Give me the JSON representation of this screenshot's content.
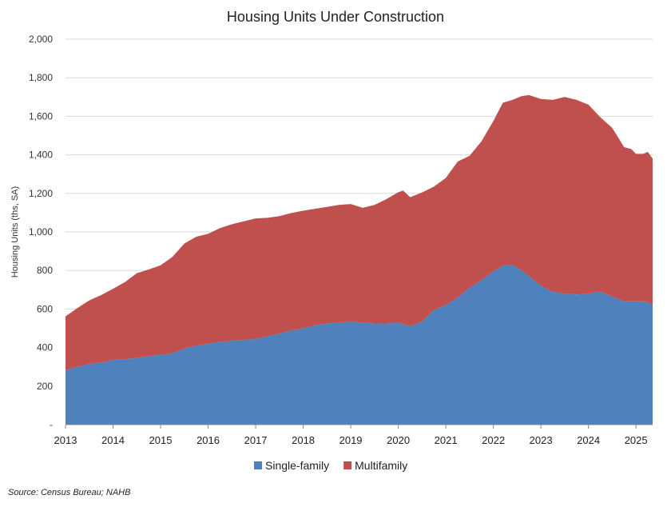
{
  "chart_data": {
    "type": "area",
    "stacked": true,
    "title": "Housing Units Under Construction",
    "ylabel": "Housing Units (ths, SA)",
    "xlabel": "",
    "xlim": [
      2013.0,
      2025.35
    ],
    "ylim": [
      0,
      2000
    ],
    "yticks": [
      0,
      200,
      400,
      600,
      800,
      1000,
      1200,
      1400,
      1600,
      1800,
      2000
    ],
    "ytick_labels": [
      "-",
      "200",
      "400",
      "600",
      "800",
      "1,000",
      "1,200",
      "1,400",
      "1,600",
      "1,800",
      "2,000"
    ],
    "xticks": [
      2013,
      2014,
      2015,
      2016,
      2017,
      2018,
      2019,
      2020,
      2021,
      2022,
      2023,
      2024,
      2025
    ],
    "xtick_labels": [
      "2013",
      "2014",
      "2015",
      "2016",
      "2017",
      "2018",
      "2019",
      "2020",
      "2021",
      "2022",
      "2023",
      "2024",
      "2025"
    ],
    "grid": "horizontal",
    "legend_position": "bottom",
    "x": [
      2013.0,
      2013.25,
      2013.5,
      2013.75,
      2014.0,
      2014.25,
      2014.5,
      2014.75,
      2015.0,
      2015.25,
      2015.5,
      2015.75,
      2016.0,
      2016.25,
      2016.5,
      2016.75,
      2017.0,
      2017.25,
      2017.5,
      2017.75,
      2018.0,
      2018.25,
      2018.5,
      2018.75,
      2019.0,
      2019.25,
      2019.5,
      2019.75,
      2020.0,
      2020.1,
      2020.25,
      2020.5,
      2020.75,
      2021.0,
      2021.25,
      2021.5,
      2021.75,
      2022.0,
      2022.2,
      2022.4,
      2022.6,
      2022.75,
      2023.0,
      2023.25,
      2023.5,
      2023.75,
      2024.0,
      2024.25,
      2024.5,
      2024.75,
      2024.9,
      2025.0,
      2025.15,
      2025.25,
      2025.35
    ],
    "series": [
      {
        "name": "Single-family",
        "color": "#4f81bd",
        "values": [
          282,
          300,
          315,
          322,
          335,
          340,
          346,
          355,
          362,
          370,
          395,
          410,
          420,
          430,
          435,
          440,
          445,
          458,
          472,
          488,
          500,
          515,
          525,
          530,
          535,
          530,
          525,
          525,
          528,
          522,
          510,
          535,
          595,
          620,
          660,
          710,
          750,
          795,
          825,
          830,
          800,
          770,
          720,
          690,
          680,
          675,
          680,
          690,
          665,
          640,
          640,
          640,
          640,
          635,
          622
        ]
      },
      {
        "name": "Multifamily",
        "color": "#c0504d",
        "values": [
          280,
          305,
          330,
          350,
          370,
          400,
          440,
          450,
          465,
          500,
          545,
          565,
          570,
          590,
          605,
          615,
          625,
          615,
          610,
          610,
          610,
          605,
          605,
          610,
          610,
          595,
          615,
          645,
          678,
          693,
          670,
          670,
          640,
          660,
          705,
          685,
          720,
          780,
          845,
          855,
          905,
          940,
          970,
          995,
          1020,
          1010,
          980,
          905,
          875,
          800,
          790,
          765,
          765,
          780,
          758
        ]
      }
    ],
    "source": "Source: Census Bureau; NAHB"
  }
}
